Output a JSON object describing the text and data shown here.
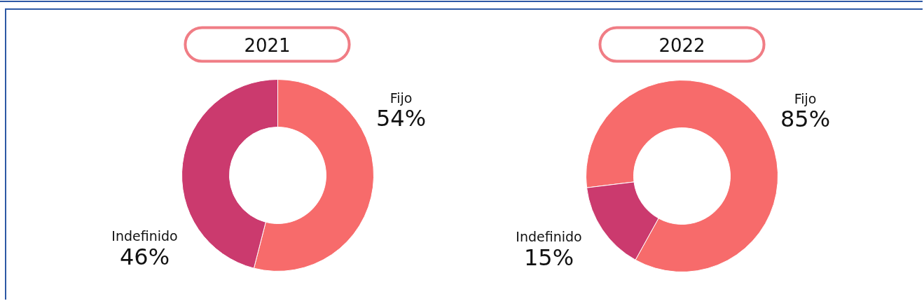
{
  "chart_data": [
    {
      "type": "donut",
      "title": "2021",
      "categories": [
        "Fijo",
        "Indefinido"
      ],
      "values": [
        54,
        46
      ],
      "value_labels": [
        "54%",
        "46%"
      ],
      "colors": [
        "#f76b6b",
        "#cb3a6e"
      ]
    },
    {
      "type": "donut",
      "title": "2022",
      "categories": [
        "Fijo",
        "Indefinido"
      ],
      "values": [
        85,
        15
      ],
      "value_labels": [
        "85%",
        "15%"
      ],
      "colors": [
        "#f76b6b",
        "#cb3a6e"
      ]
    }
  ]
}
